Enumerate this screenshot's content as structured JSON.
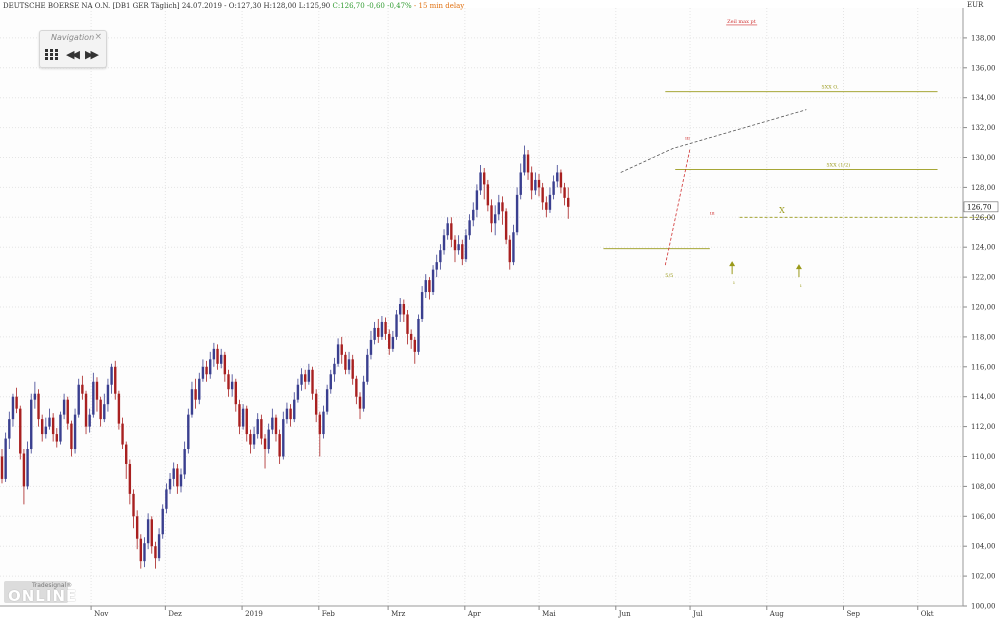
{
  "header": {
    "symbol_text": "DEUTSCHE BOERSE NA O.N. [DB1 GER Täglich] 24.07.2019 - O:127,30 H:128,00 L:125,90",
    "change_text": "C:126,70 -0,60 -0,47%",
    "delay_text": "- 15 min delay"
  },
  "navigation": {
    "title": "Navigation",
    "close": "×",
    "rewind": "◀◀",
    "forward": "▶▶"
  },
  "logo": {
    "top": "Tradesignal®",
    "main": "ONLINE"
  },
  "colors": {
    "up": "#3a3f8f",
    "down": "#a82020",
    "grid": "#e4e4e4",
    "olive": "#9a9a1a",
    "trend": "#555555",
    "marker_red": "#d03030"
  },
  "chart_data": {
    "type": "candlestick",
    "currency_label": "EUR",
    "ylim": [
      100,
      140
    ],
    "yticks": [
      "100,00",
      "102,00",
      "104,00",
      "106,00",
      "108,00",
      "110,00",
      "112,00",
      "114,00",
      "116,00",
      "118,00",
      "120,00",
      "122,00",
      "124,00",
      "126,00",
      "128,00",
      "130,00",
      "132,00",
      "134,00",
      "136,00",
      "138,00"
    ],
    "last_price_label": "126,70",
    "xticks": [
      {
        "label": "Nov",
        "day": 36
      },
      {
        "label": "Dez",
        "day": 66
      },
      {
        "label": "2019",
        "day": 97
      },
      {
        "label": "Feb",
        "day": 128
      },
      {
        "label": "Mrz",
        "day": 156
      },
      {
        "label": "Apr",
        "day": 187
      },
      {
        "label": "Mai",
        "day": 217
      },
      {
        "label": "Jun",
        "day": 248
      },
      {
        "label": "Jul",
        "day": 278
      },
      {
        "label": "Aug",
        "day": 309
      },
      {
        "label": "Sep",
        "day": 340
      },
      {
        "label": "Okt",
        "day": 370
      }
    ],
    "candles": [
      [
        110.0,
        108.5,
        110.5,
        108.2
      ],
      [
        108.5,
        111.2,
        111.6,
        108.3
      ],
      [
        111.2,
        112.5,
        113.0,
        110.5
      ],
      [
        112.5,
        114.0,
        114.2,
        112.0
      ],
      [
        114.0,
        113.2,
        114.6,
        112.9
      ],
      [
        113.2,
        110.2,
        113.4,
        109.8
      ],
      [
        110.2,
        108.0,
        110.5,
        106.8
      ],
      [
        108.0,
        110.5,
        111.0,
        107.8
      ],
      [
        110.5,
        113.8,
        114.2,
        110.2
      ],
      [
        113.8,
        114.2,
        115.0,
        113.2
      ],
      [
        114.2,
        112.5,
        114.5,
        112.0
      ],
      [
        112.5,
        111.5,
        112.8,
        111.0
      ],
      [
        111.5,
        112.0,
        112.6,
        111.2
      ],
      [
        112.0,
        112.6,
        113.2,
        111.8
      ],
      [
        112.6,
        111.5,
        112.9,
        111.0
      ],
      [
        111.5,
        111.0,
        111.9,
        110.6
      ],
      [
        111.0,
        112.8,
        113.0,
        110.8
      ],
      [
        112.8,
        113.8,
        114.2,
        112.5
      ],
      [
        113.8,
        112.2,
        114.0,
        111.8
      ],
      [
        112.2,
        110.5,
        112.4,
        110.0
      ],
      [
        110.5,
        112.8,
        113.2,
        110.2
      ],
      [
        112.8,
        114.8,
        115.2,
        112.6
      ],
      [
        114.8,
        114.2,
        115.4,
        113.8
      ],
      [
        114.2,
        112.0,
        114.4,
        111.5
      ],
      [
        112.0,
        112.8,
        113.2,
        111.6
      ],
      [
        112.8,
        115.0,
        115.6,
        112.6
      ],
      [
        115.0,
        113.8,
        115.3,
        113.0
      ],
      [
        113.8,
        112.5,
        114.0,
        112.0
      ],
      [
        112.5,
        113.5,
        114.2,
        112.3
      ],
      [
        113.5,
        114.8,
        115.2,
        113.0
      ],
      [
        114.8,
        116.0,
        116.2,
        114.2
      ],
      [
        116.0,
        114.2,
        116.4,
        113.8
      ],
      [
        114.2,
        112.2,
        114.4,
        111.8
      ],
      [
        112.2,
        110.8,
        112.6,
        110.5
      ],
      [
        110.8,
        109.5,
        111.0,
        108.5
      ],
      [
        109.5,
        107.5,
        109.8,
        106.8
      ],
      [
        107.5,
        106.0,
        107.8,
        105.2
      ],
      [
        106.0,
        104.5,
        106.4,
        103.8
      ],
      [
        104.5,
        103.0,
        104.8,
        102.5
      ],
      [
        103.0,
        104.2,
        104.6,
        102.6
      ],
      [
        104.2,
        105.8,
        106.2,
        103.8
      ],
      [
        105.8,
        104.0,
        106.0,
        103.5
      ],
      [
        104.0,
        103.2,
        104.3,
        102.5
      ],
      [
        103.2,
        104.8,
        105.2,
        103.0
      ],
      [
        104.8,
        106.5,
        106.8,
        104.5
      ],
      [
        106.5,
        107.8,
        108.2,
        106.2
      ],
      [
        107.8,
        108.5,
        108.9,
        107.5
      ],
      [
        108.5,
        109.2,
        109.6,
        108.0
      ],
      [
        109.2,
        108.0,
        109.5,
        107.5
      ],
      [
        108.0,
        108.8,
        109.2,
        107.6
      ],
      [
        108.8,
        110.5,
        111.0,
        108.5
      ],
      [
        110.5,
        112.8,
        113.2,
        110.2
      ],
      [
        112.8,
        114.5,
        115.0,
        112.6
      ],
      [
        114.5,
        113.8,
        115.2,
        113.2
      ],
      [
        113.8,
        115.2,
        115.6,
        113.5
      ],
      [
        115.2,
        116.0,
        116.5,
        115.0
      ],
      [
        116.0,
        115.5,
        116.4,
        115.0
      ],
      [
        115.5,
        116.5,
        117.0,
        115.2
      ],
      [
        116.5,
        117.2,
        117.6,
        116.0
      ],
      [
        117.2,
        116.2,
        117.5,
        115.8
      ],
      [
        116.2,
        116.8,
        117.2,
        115.9
      ],
      [
        116.8,
        115.5,
        117.0,
        115.0
      ],
      [
        115.5,
        114.5,
        115.8,
        114.0
      ],
      [
        114.5,
        115.0,
        115.5,
        114.0
      ],
      [
        115.0,
        113.5,
        115.2,
        113.0
      ],
      [
        113.5,
        112.0,
        113.8,
        111.5
      ],
      [
        112.0,
        113.2,
        113.5,
        111.8
      ],
      [
        113.2,
        111.5,
        113.4,
        111.0
      ],
      [
        111.5,
        110.8,
        111.8,
        110.2
      ],
      [
        110.8,
        111.5,
        112.0,
        110.5
      ],
      [
        111.5,
        112.5,
        112.9,
        111.2
      ],
      [
        112.5,
        111.2,
        112.8,
        110.8
      ],
      [
        111.2,
        110.5,
        111.5,
        109.2
      ],
      [
        110.5,
        111.8,
        112.2,
        110.2
      ],
      [
        111.8,
        112.6,
        113.2,
        111.5
      ],
      [
        112.6,
        111.5,
        112.8,
        111.0
      ],
      [
        111.5,
        110.0,
        111.8,
        109.5
      ],
      [
        110.0,
        112.5,
        113.0,
        109.8
      ],
      [
        112.5,
        113.2,
        113.6,
        112.2
      ],
      [
        113.2,
        112.5,
        113.5,
        112.0
      ],
      [
        112.5,
        113.8,
        114.3,
        112.3
      ],
      [
        113.8,
        114.8,
        115.2,
        113.6
      ],
      [
        114.8,
        115.5,
        115.9,
        114.4
      ],
      [
        115.5,
        115.0,
        115.8,
        114.5
      ],
      [
        115.0,
        115.8,
        116.2,
        114.8
      ],
      [
        115.8,
        114.2,
        116.0,
        113.8
      ],
      [
        114.2,
        112.8,
        114.5,
        112.3
      ],
      [
        112.8,
        111.5,
        113.0,
        110.0
      ],
      [
        111.5,
        113.0,
        113.4,
        111.2
      ],
      [
        113.0,
        114.5,
        114.8,
        112.8
      ],
      [
        114.5,
        115.5,
        115.8,
        114.2
      ],
      [
        115.5,
        116.2,
        116.6,
        115.0
      ],
      [
        116.2,
        117.5,
        117.9,
        116.0
      ],
      [
        117.5,
        116.8,
        118.0,
        116.2
      ],
      [
        116.8,
        115.8,
        117.0,
        115.5
      ],
      [
        115.8,
        116.5,
        117.0,
        115.5
      ],
      [
        116.5,
        115.2,
        116.8,
        114.8
      ],
      [
        115.2,
        114.0,
        115.4,
        113.5
      ],
      [
        114.0,
        113.2,
        114.3,
        112.5
      ],
      [
        113.2,
        115.0,
        115.4,
        113.0
      ],
      [
        115.0,
        116.8,
        117.2,
        114.8
      ],
      [
        116.8,
        117.8,
        118.4,
        116.5
      ],
      [
        117.8,
        118.6,
        119.0,
        117.5
      ],
      [
        118.6,
        118.0,
        119.2,
        117.6
      ],
      [
        118.0,
        119.0,
        119.4,
        117.8
      ],
      [
        119.0,
        118.2,
        119.3,
        117.8
      ],
      [
        118.2,
        117.2,
        118.5,
        116.8
      ],
      [
        117.2,
        118.0,
        118.4,
        117.0
      ],
      [
        118.0,
        119.5,
        119.8,
        117.8
      ],
      [
        119.5,
        120.2,
        120.6,
        119.0
      ],
      [
        120.2,
        119.5,
        120.5,
        119.0
      ],
      [
        119.5,
        118.2,
        119.8,
        117.5
      ],
      [
        118.2,
        117.8,
        118.5,
        117.2
      ],
      [
        117.8,
        117.0,
        118.0,
        116.2
      ],
      [
        117.0,
        119.2,
        119.5,
        116.8
      ],
      [
        119.2,
        121.0,
        121.4,
        119.0
      ],
      [
        121.0,
        121.8,
        122.2,
        120.6
      ],
      [
        121.8,
        121.0,
        122.0,
        120.5
      ],
      [
        121.0,
        122.5,
        122.8,
        120.8
      ],
      [
        122.5,
        123.0,
        123.5,
        122.0
      ],
      [
        123.0,
        123.8,
        124.2,
        122.5
      ],
      [
        123.8,
        124.8,
        125.2,
        123.5
      ],
      [
        124.8,
        125.6,
        126.0,
        124.5
      ],
      [
        125.6,
        124.5,
        126.0,
        124.0
      ],
      [
        124.5,
        123.8,
        124.8,
        123.0
      ],
      [
        123.8,
        124.2,
        124.8,
        123.5
      ],
      [
        124.2,
        123.2,
        124.5,
        122.8
      ],
      [
        123.2,
        124.8,
        125.2,
        123.0
      ],
      [
        124.8,
        125.8,
        126.2,
        124.5
      ],
      [
        125.8,
        126.5,
        127.0,
        125.4
      ],
      [
        126.5,
        127.8,
        128.2,
        126.0
      ],
      [
        127.8,
        129.0,
        129.5,
        127.5
      ],
      [
        129.0,
        128.2,
        129.3,
        127.2
      ],
      [
        128.2,
        126.8,
        128.5,
        126.4
      ],
      [
        126.8,
        125.6,
        127.2,
        125.0
      ],
      [
        125.6,
        126.2,
        126.8,
        124.8
      ],
      [
        126.2,
        127.0,
        127.5,
        125.8
      ],
      [
        127.0,
        126.4,
        127.4,
        125.5
      ],
      [
        126.4,
        124.5,
        126.6,
        124.2
      ],
      [
        124.5,
        123.0,
        124.8,
        122.5
      ],
      [
        123.0,
        125.0,
        125.5,
        122.8
      ],
      [
        125.0,
        127.5,
        128.0,
        124.8
      ],
      [
        127.5,
        129.0,
        129.6,
        127.2
      ],
      [
        129.0,
        130.2,
        130.8,
        128.8
      ],
      [
        130.2,
        129.0,
        130.5,
        128.5
      ],
      [
        129.0,
        127.8,
        129.4,
        127.2
      ],
      [
        127.8,
        128.5,
        129.0,
        127.5
      ],
      [
        128.5,
        128.0,
        128.9,
        127.4
      ],
      [
        128.0,
        127.0,
        128.3,
        126.5
      ],
      [
        127.0,
        126.5,
        127.4,
        126.0
      ],
      [
        126.5,
        127.5,
        128.0,
        126.3
      ],
      [
        127.5,
        128.4,
        128.8,
        127.2
      ],
      [
        128.4,
        129.0,
        129.5,
        128.0
      ],
      [
        129.0,
        128.0,
        129.2,
        127.6
      ],
      [
        128.0,
        127.3,
        128.3,
        126.8
      ],
      [
        127.3,
        126.7,
        128.0,
        125.9
      ]
    ],
    "candle_start_day": 0,
    "candle_day_step": 1.476,
    "annotations": [
      {
        "type": "hline",
        "label": "5XX O,",
        "y": 134.4,
        "x0": 268,
        "x1": 378
      },
      {
        "type": "hline",
        "label": "5XX (1/2)",
        "y": 129.2,
        "x0": 272,
        "x1": 378
      },
      {
        "type": "hline",
        "label": "",
        "y": 123.9,
        "x0": 243,
        "x1": 286
      },
      {
        "type": "dashline",
        "label": "",
        "y": 126.0,
        "x0": 298,
        "x1": 400
      },
      {
        "type": "trend",
        "label": "",
        "points": [
          [
            250,
            129.0
          ],
          [
            271,
            130.6
          ],
          [
            325,
            133.2
          ]
        ]
      },
      {
        "type": "trend",
        "label": "",
        "points": [
          [
            268,
            122.8
          ],
          [
            278,
            130.6
          ]
        ]
      },
      {
        "type": "text",
        "label": "Zeil max pt",
        "x": 293,
        "y": 139.0
      },
      {
        "type": "text",
        "label": "ııı",
        "x": 276,
        "y": 131.2
      },
      {
        "type": "text",
        "label": "ııı",
        "x": 286,
        "y": 126.2
      },
      {
        "type": "text",
        "label": "5/5",
        "x": 268,
        "y": 122.0
      },
      {
        "type": "text",
        "label": "X",
        "x": 314,
        "y": 126.3
      },
      {
        "type": "arrow",
        "label": "ı",
        "x": 295,
        "y": 123.0
      },
      {
        "type": "arrow",
        "label": "ı",
        "x": 322,
        "y": 122.8
      }
    ]
  }
}
